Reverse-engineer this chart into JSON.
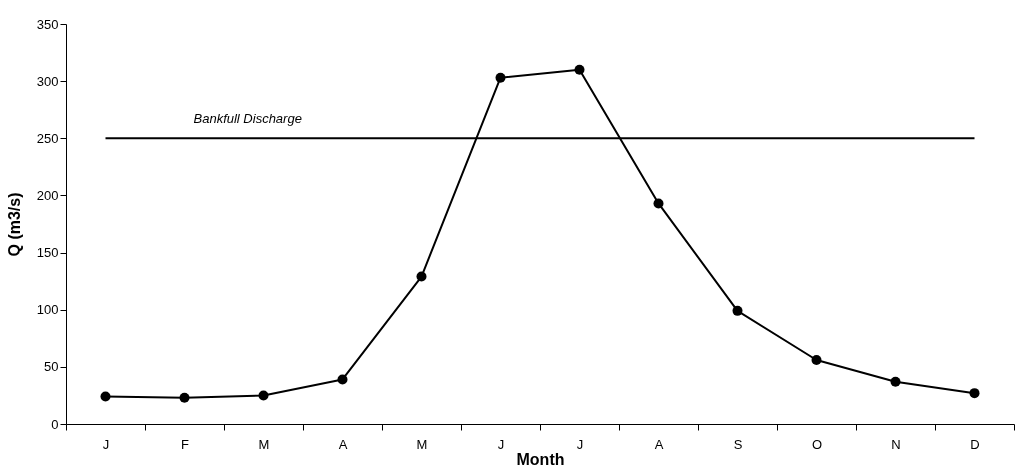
{
  "chart_data": {
    "type": "line",
    "xlabel": "Month",
    "ylabel": "Q (m3/s)",
    "categories": [
      "J",
      "F",
      "M",
      "A",
      "M",
      "J",
      "J",
      "A",
      "S",
      "O",
      "N",
      "D"
    ],
    "series": [
      {
        "color": "#000000",
        "values": [
          24,
          23,
          25,
          39,
          129,
          303,
          310,
          193,
          99,
          56,
          37,
          27
        ]
      }
    ],
    "ylim": [
      0,
      350
    ],
    "yticks": [
      0,
      50,
      100,
      150,
      200,
      250,
      300,
      350
    ],
    "ref_lines": [
      {
        "axis": "y",
        "value": 250,
        "label": "Bankfull Discharge",
        "color": "#000000",
        "line_style": "solid"
      }
    ],
    "marker": "circle",
    "line_style": "solid",
    "grid": false
  }
}
